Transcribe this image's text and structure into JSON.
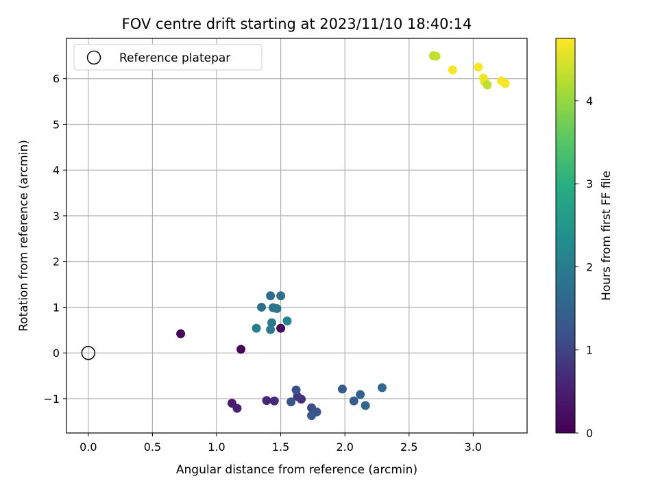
{
  "chart_data": {
    "type": "scatter",
    "title": "FOV centre drift starting at 2023/11/10 18:40:14",
    "xlabel": "Angular distance from reference (arcmin)",
    "ylabel": "Rotation from reference (arcmin)",
    "xlim": [
      -0.17,
      3.42
    ],
    "ylim": [
      -1.75,
      6.88
    ],
    "xticks": [
      {
        "value": 0.0,
        "label": "0.0"
      },
      {
        "value": 0.5,
        "label": "0.5"
      },
      {
        "value": 1.0,
        "label": "1.0"
      },
      {
        "value": 1.5,
        "label": "1.5"
      },
      {
        "value": 2.0,
        "label": "2.0"
      },
      {
        "value": 2.5,
        "label": "2.5"
      },
      {
        "value": 3.0,
        "label": "3.0"
      }
    ],
    "yticks": [
      {
        "value": -1,
        "label": "−1"
      },
      {
        "value": 0,
        "label": "0"
      },
      {
        "value": 1,
        "label": "1"
      },
      {
        "value": 2,
        "label": "2"
      },
      {
        "value": 3,
        "label": "3"
      },
      {
        "value": 4,
        "label": "4"
      },
      {
        "value": 5,
        "label": "5"
      },
      {
        "value": 6,
        "label": "6"
      }
    ],
    "grid": true,
    "legend": {
      "position": "top-left",
      "entries": [
        {
          "label": "Reference platepar",
          "marker": "open-circle"
        }
      ]
    },
    "reference_point": {
      "x": 0.0,
      "y": 0.0
    },
    "colorbar": {
      "label": "Hours from first FF file",
      "range": [
        0,
        4.75
      ],
      "colormap": "viridis",
      "ticks": [
        {
          "value": 0,
          "label": "0"
        },
        {
          "value": 1,
          "label": "1"
        },
        {
          "value": 2,
          "label": "2"
        },
        {
          "value": 3,
          "label": "3"
        },
        {
          "value": 4,
          "label": "4"
        }
      ]
    },
    "points": [
      {
        "x": 0.72,
        "y": 0.42,
        "c": 0.05
      },
      {
        "x": 1.19,
        "y": 0.08,
        "c": 0.1
      },
      {
        "x": 1.5,
        "y": 0.54,
        "c": 0.15
      },
      {
        "x": 1.12,
        "y": -1.1,
        "c": 0.45
      },
      {
        "x": 1.16,
        "y": -1.21,
        "c": 0.5
      },
      {
        "x": 1.39,
        "y": -1.04,
        "c": 0.65
      },
      {
        "x": 1.45,
        "y": -1.05,
        "c": 0.7
      },
      {
        "x": 1.66,
        "y": -1.01,
        "c": 0.75
      },
      {
        "x": 1.63,
        "y": -0.95,
        "c": 0.85
      },
      {
        "x": 1.62,
        "y": -0.81,
        "c": 1.2
      },
      {
        "x": 1.58,
        "y": -1.07,
        "c": 1.25
      },
      {
        "x": 1.74,
        "y": -1.2,
        "c": 1.15
      },
      {
        "x": 1.78,
        "y": -1.29,
        "c": 1.25
      },
      {
        "x": 1.74,
        "y": -1.37,
        "c": 1.3
      },
      {
        "x": 1.98,
        "y": -0.79,
        "c": 1.35
      },
      {
        "x": 2.07,
        "y": -1.05,
        "c": 1.4
      },
      {
        "x": 2.12,
        "y": -0.91,
        "c": 1.5
      },
      {
        "x": 2.16,
        "y": -1.15,
        "c": 1.55
      },
      {
        "x": 2.29,
        "y": -0.76,
        "c": 1.6
      },
      {
        "x": 1.42,
        "y": 1.25,
        "c": 1.65
      },
      {
        "x": 1.5,
        "y": 1.25,
        "c": 1.7
      },
      {
        "x": 1.35,
        "y": 1.0,
        "c": 1.75
      },
      {
        "x": 1.44,
        "y": 0.99,
        "c": 1.8
      },
      {
        "x": 1.47,
        "y": 0.97,
        "c": 1.85
      },
      {
        "x": 1.43,
        "y": 0.66,
        "c": 1.9
      },
      {
        "x": 1.42,
        "y": 0.51,
        "c": 1.95
      },
      {
        "x": 1.31,
        "y": 0.54,
        "c": 2.0
      },
      {
        "x": 1.55,
        "y": 0.7,
        "c": 2.1
      },
      {
        "x": 2.69,
        "y": 6.5,
        "c": 4.3
      },
      {
        "x": 2.71,
        "y": 6.49,
        "c": 4.35
      },
      {
        "x": 2.84,
        "y": 6.19,
        "c": 4.7
      },
      {
        "x": 3.04,
        "y": 6.25,
        "c": 4.7
      },
      {
        "x": 3.08,
        "y": 6.01,
        "c": 4.65
      },
      {
        "x": 3.09,
        "y": 5.93,
        "c": 4.6
      },
      {
        "x": 3.11,
        "y": 5.86,
        "c": 4.3
      },
      {
        "x": 3.22,
        "y": 5.95,
        "c": 4.7
      },
      {
        "x": 3.25,
        "y": 5.89,
        "c": 4.7
      }
    ]
  }
}
